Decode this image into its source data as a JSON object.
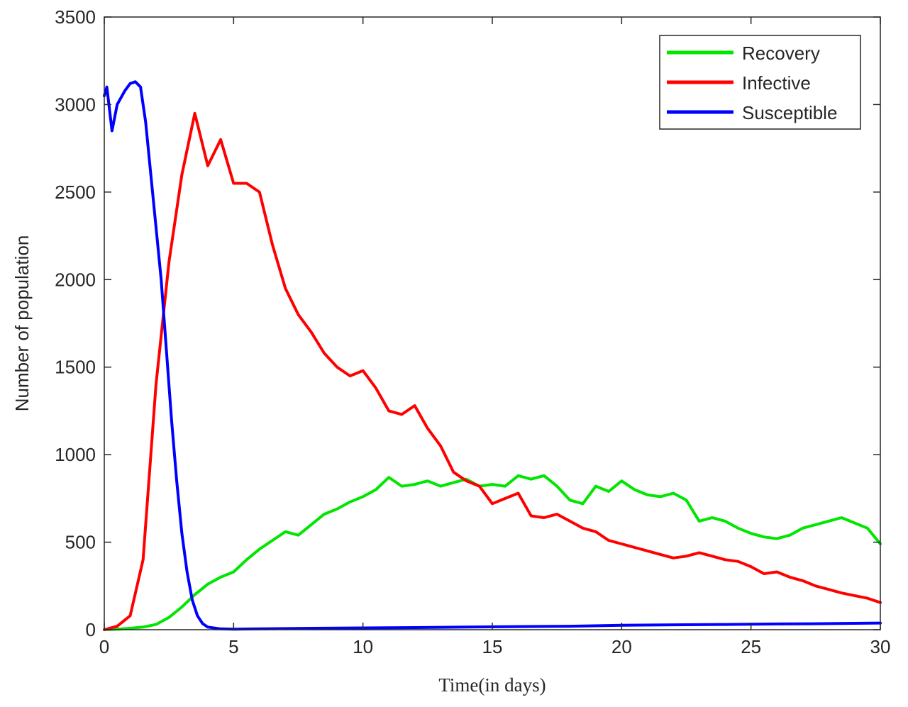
{
  "chart_data": {
    "type": "line",
    "title": "",
    "xlabel": "Time(in days)",
    "ylabel": "Number of population",
    "xlim": [
      0,
      30
    ],
    "ylim": [
      0,
      3500
    ],
    "xticks": [
      0,
      5,
      10,
      15,
      20,
      25,
      30
    ],
    "yticks": [
      0,
      500,
      1000,
      1500,
      2000,
      2500,
      3000,
      3500
    ],
    "grid": false,
    "legend_position": "top-right",
    "series": [
      {
        "name": "Recovery",
        "color": "#00e600",
        "x": [
          0,
          0.5,
          1,
          1.5,
          2,
          2.5,
          3,
          3.5,
          4,
          4.5,
          5,
          5.5,
          6,
          6.5,
          7,
          7.5,
          8,
          8.5,
          9,
          9.5,
          10,
          10.5,
          11,
          11.5,
          12,
          12.5,
          13,
          13.5,
          14,
          14.5,
          15,
          15.5,
          16,
          16.5,
          17,
          17.5,
          18,
          18.5,
          19,
          19.5,
          20,
          20.5,
          21,
          21.5,
          22,
          22.5,
          23,
          23.5,
          24,
          24.5,
          25,
          25.5,
          26,
          26.5,
          27,
          27.5,
          28,
          28.5,
          29,
          29.5,
          30
        ],
        "values": [
          0,
          3,
          8,
          15,
          30,
          70,
          130,
          200,
          260,
          300,
          330,
          400,
          460,
          510,
          560,
          540,
          600,
          660,
          690,
          730,
          760,
          800,
          870,
          820,
          830,
          850,
          820,
          840,
          860,
          820,
          830,
          820,
          880,
          860,
          880,
          820,
          740,
          720,
          820,
          790,
          850,
          800,
          770,
          760,
          780,
          740,
          620,
          640,
          620,
          580,
          550,
          530,
          520,
          540,
          580,
          600,
          620,
          640,
          610,
          580,
          490
        ]
      },
      {
        "name": "Infective",
        "color": "#ff0000",
        "x": [
          0,
          0.5,
          1,
          1.5,
          2,
          2.5,
          3,
          3.5,
          4,
          4.5,
          5,
          5.5,
          6,
          6.5,
          7,
          7.5,
          8,
          8.5,
          9,
          9.5,
          10,
          10.5,
          11,
          11.5,
          12,
          12.5,
          13,
          13.5,
          14,
          14.5,
          15,
          15.5,
          16,
          16.5,
          17,
          17.5,
          18,
          18.5,
          19,
          19.5,
          20,
          20.5,
          21,
          21.5,
          22,
          22.5,
          23,
          23.5,
          24,
          24.5,
          25,
          25.5,
          26,
          26.5,
          27,
          27.5,
          28,
          28.5,
          29,
          29.5,
          30
        ],
        "values": [
          0,
          20,
          80,
          400,
          1400,
          2100,
          2600,
          2950,
          2650,
          2800,
          2550,
          2550,
          2500,
          2200,
          1950,
          1800,
          1700,
          1580,
          1500,
          1450,
          1480,
          1380,
          1250,
          1230,
          1280,
          1150,
          1050,
          900,
          850,
          820,
          720,
          750,
          780,
          650,
          640,
          660,
          620,
          580,
          560,
          510,
          490,
          470,
          450,
          430,
          410,
          420,
          440,
          420,
          400,
          390,
          360,
          320,
          330,
          300,
          280,
          250,
          230,
          210,
          195,
          180,
          155
        ]
      },
      {
        "name": "Susceptible",
        "color": "#0000ff",
        "x": [
          0,
          0.1,
          0.3,
          0.5,
          0.8,
          1.0,
          1.2,
          1.4,
          1.6,
          1.8,
          2.0,
          2.2,
          2.4,
          2.6,
          2.8,
          3.0,
          3.2,
          3.4,
          3.6,
          3.8,
          4.0,
          4.5,
          5,
          6,
          8,
          10,
          12,
          14,
          16,
          18,
          20,
          22,
          24,
          26,
          28,
          30
        ],
        "values": [
          3050,
          3100,
          2850,
          3000,
          3080,
          3120,
          3130,
          3100,
          2900,
          2600,
          2300,
          2000,
          1600,
          1200,
          850,
          550,
          330,
          170,
          80,
          35,
          15,
          5,
          3,
          5,
          8,
          10,
          12,
          15,
          18,
          20,
          25,
          28,
          30,
          33,
          35,
          38
        ]
      }
    ]
  }
}
